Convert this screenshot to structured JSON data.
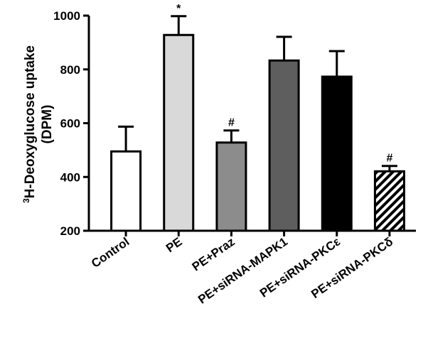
{
  "chart_data": {
    "type": "bar",
    "ylabel_prefix": "3",
    "ylabel_line1": "H-Deoxyglucose uptake",
    "ylabel_line2": "(DPM)",
    "ylim": [
      200,
      1000
    ],
    "yticks": [
      200,
      400,
      600,
      800,
      1000
    ],
    "categories": [
      "Control",
      "PE",
      "PE+Praz",
      "PE+siRNA-MAPK1",
      "PE+siRNA-PKCε",
      "PE+siRNA-PKCδ"
    ],
    "values": [
      495,
      928,
      528,
      833,
      773,
      421
    ],
    "errors": [
      92,
      70,
      45,
      88,
      95,
      20
    ],
    "significance": [
      "",
      "*",
      "#",
      "",
      "",
      "#"
    ],
    "fills": [
      "#ffffff",
      "#d9d9d9",
      "#8c8c8c",
      "#5e5e5e",
      "#000000",
      "hatch"
    ],
    "grid": false
  }
}
